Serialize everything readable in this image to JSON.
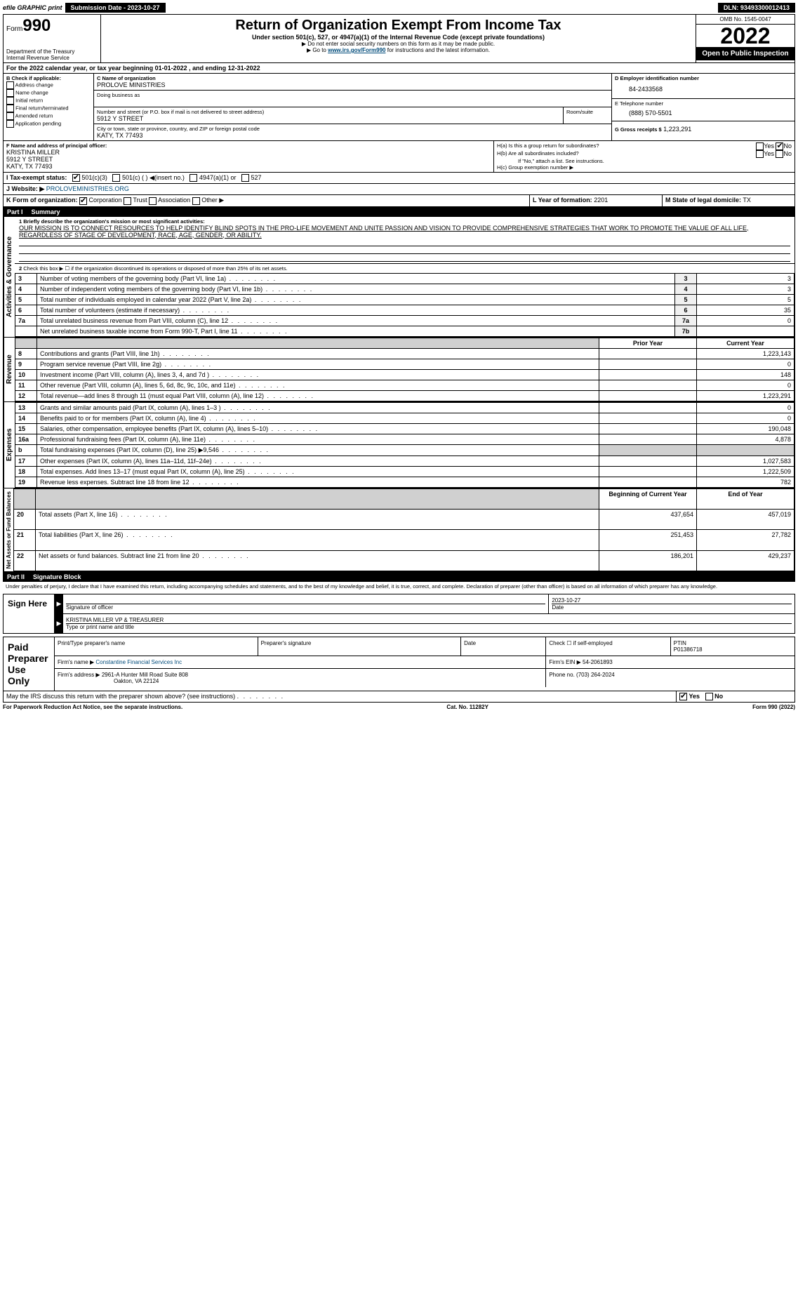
{
  "topbar": {
    "efile": "efile GRAPHIC print",
    "submission": "Submission Date - 2023-10-27",
    "dln": "DLN: 93493300012413"
  },
  "header": {
    "form_prefix": "Form",
    "form_number": "990",
    "dept": "Department of the Treasury",
    "irs": "Internal Revenue Service",
    "title": "Return of Organization Exempt From Income Tax",
    "subtitle": "Under section 501(c), 527, or 4947(a)(1) of the Internal Revenue Code (except private foundations)",
    "sub2": "▶ Do not enter social security numbers on this form as it may be made public.",
    "sub3_pre": "▶ Go to ",
    "sub3_link": "www.irs.gov/Form990",
    "sub3_post": " for instructions and the latest information.",
    "omb": "OMB No. 1545-0047",
    "year": "2022",
    "open": "Open to Public Inspection"
  },
  "line_a": "For the 2022 calendar year, or tax year beginning 01-01-2022    , and ending 12-31-2022",
  "box_b": {
    "title": "B Check if applicable:",
    "items": [
      "Address change",
      "Name change",
      "Initial return",
      "Final return/terminated",
      "Amended return",
      "Application pending"
    ]
  },
  "box_c": {
    "label_name": "C Name of organization",
    "name": "PROLOVE MINISTRIES",
    "dba_label": "Doing business as",
    "addr_label": "Number and street (or P.O. box if mail is not delivered to street address)",
    "room_label": "Room/suite",
    "addr": "5912 Y STREET",
    "city_label": "City or town, state or province, country, and ZIP or foreign postal code",
    "city": "KATY, TX  77493"
  },
  "box_d": {
    "label": "D Employer identification number",
    "value": "84-2433568"
  },
  "box_e": {
    "label": "E Telephone number",
    "value": "(888) 570-5501"
  },
  "box_g": {
    "label": "G Gross receipts $",
    "value": "1,223,291"
  },
  "box_f": {
    "label": "F  Name and address of principal officer:",
    "name": "KRISTINA MILLER",
    "addr1": "5912 Y STREET",
    "addr2": "KATY, TX  77493"
  },
  "box_h": {
    "ha_label": "H(a)  Is this a group return for subordinates?",
    "hb_label": "H(b)  Are all subordinates included?",
    "hb_note": "If \"No,\" attach a list. See instructions.",
    "hc_label": "H(c)  Group exemption number ▶",
    "yes": "Yes",
    "no": "No"
  },
  "box_i": {
    "label": "I  Tax-exempt status:",
    "opts": [
      "501(c)(3)",
      "501(c) (  ) ◀(insert no.)",
      "4947(a)(1) or",
      "527"
    ]
  },
  "box_j": {
    "label": "J  Website: ▶",
    "value": "PROLOVEMINISTRIES.ORG"
  },
  "box_k": {
    "label": "K Form of organization:",
    "opts": [
      "Corporation",
      "Trust",
      "Association",
      "Other ▶"
    ]
  },
  "box_l": {
    "label": "L Year of formation:",
    "value": "2201"
  },
  "box_m": {
    "label": "M State of legal domicile:",
    "value": "TX"
  },
  "part1": {
    "title": "Part I",
    "name": "Summary",
    "mission_label": "1 Briefly describe the organization's mission or most significant activities:",
    "mission": "OUR MISSION IS TO CONNECT RESOURCES TO HELP IDENTIFY BLIND SPOTS IN THE PRO-LIFE MOVEMENT AND UNITE PASSION AND VISION TO PROVIDE COMPREHENSIVE STRATEGIES THAT WORK TO PROMOTE THE VALUE OF ALL LIFE, REGARDLESS OF STAGE OF DEVELOPMENT, RACE, AGE, GENDER, OR ABILITY.",
    "line2": "Check this box ▶ ☐  if the organization discontinued its operations or disposed of more than 25% of its net assets.",
    "sections": {
      "governance": "Activities & Governance",
      "revenue": "Revenue",
      "expenses": "Expenses",
      "netassets": "Net Assets or Fund Balances"
    },
    "col_prior": "Prior Year",
    "col_current": "Current Year",
    "col_begin": "Beginning of Current Year",
    "col_end": "End of Year",
    "governance_rows": [
      {
        "n": "3",
        "text": "Number of voting members of the governing body (Part VI, line 1a)",
        "box": "3",
        "val": "3"
      },
      {
        "n": "4",
        "text": "Number of independent voting members of the governing body (Part VI, line 1b)",
        "box": "4",
        "val": "3"
      },
      {
        "n": "5",
        "text": "Total number of individuals employed in calendar year 2022 (Part V, line 2a)",
        "box": "5",
        "val": "5"
      },
      {
        "n": "6",
        "text": "Total number of volunteers (estimate if necessary)",
        "box": "6",
        "val": "35"
      },
      {
        "n": "7a",
        "text": "Total unrelated business revenue from Part VIII, column (C), line 12",
        "box": "7a",
        "val": "0"
      },
      {
        "n": "",
        "text": "Net unrelated business taxable income from Form 990-T, Part I, line 11",
        "box": "7b",
        "val": ""
      }
    ],
    "revenue_rows": [
      {
        "n": "8",
        "text": "Contributions and grants (Part VIII, line 1h)",
        "prior": "",
        "curr": "1,223,143"
      },
      {
        "n": "9",
        "text": "Program service revenue (Part VIII, line 2g)",
        "prior": "",
        "curr": "0"
      },
      {
        "n": "10",
        "text": "Investment income (Part VIII, column (A), lines 3, 4, and 7d )",
        "prior": "",
        "curr": "148"
      },
      {
        "n": "11",
        "text": "Other revenue (Part VIII, column (A), lines 5, 6d, 8c, 9c, 10c, and 11e)",
        "prior": "",
        "curr": "0"
      },
      {
        "n": "12",
        "text": "Total revenue—add lines 8 through 11 (must equal Part VIII, column (A), line 12)",
        "prior": "",
        "curr": "1,223,291"
      }
    ],
    "expense_rows": [
      {
        "n": "13",
        "text": "Grants and similar amounts paid (Part IX, column (A), lines 1–3 )",
        "prior": "",
        "curr": "0"
      },
      {
        "n": "14",
        "text": "Benefits paid to or for members (Part IX, column (A), line 4)",
        "prior": "",
        "curr": "0"
      },
      {
        "n": "15",
        "text": "Salaries, other compensation, employee benefits (Part IX, column (A), lines 5–10)",
        "prior": "",
        "curr": "190,048"
      },
      {
        "n": "16a",
        "text": "Professional fundraising fees (Part IX, column (A), line 11e)",
        "prior": "",
        "curr": "4,878"
      },
      {
        "n": "b",
        "text": "Total fundraising expenses (Part IX, column (D), line 25) ▶9,546",
        "prior": "grey",
        "curr": "grey"
      },
      {
        "n": "17",
        "text": "Other expenses (Part IX, column (A), lines 11a–11d, 11f–24e)",
        "prior": "",
        "curr": "1,027,583"
      },
      {
        "n": "18",
        "text": "Total expenses. Add lines 13–17 (must equal Part IX, column (A), line 25)",
        "prior": "",
        "curr": "1,222,509"
      },
      {
        "n": "19",
        "text": "Revenue less expenses. Subtract line 18 from line 12",
        "prior": "",
        "curr": "782"
      }
    ],
    "netasset_rows": [
      {
        "n": "20",
        "text": "Total assets (Part X, line 16)",
        "prior": "437,654",
        "curr": "457,019"
      },
      {
        "n": "21",
        "text": "Total liabilities (Part X, line 26)",
        "prior": "251,453",
        "curr": "27,782"
      },
      {
        "n": "22",
        "text": "Net assets or fund balances. Subtract line 21 from line 20",
        "prior": "186,201",
        "curr": "429,237"
      }
    ]
  },
  "part2": {
    "title": "Part II",
    "name": "Signature Block",
    "perjury": "Under penalties of perjury, I declare that I have examined this return, including accompanying schedules and statements, and to the best of my knowledge and belief, it is true, correct, and complete. Declaration of preparer (other than officer) is based on all information of which preparer has any knowledge."
  },
  "sign": {
    "here": "Sign Here",
    "sig_label": "Signature of officer",
    "date_label": "Date",
    "date_val": "2023-10-27",
    "name_val": "KRISTINA MILLER  VP & TREASURER",
    "name_label": "Type or print name and title"
  },
  "paid": {
    "title": "Paid Preparer Use Only",
    "print_label": "Print/Type preparer's name",
    "sig_label": "Preparer's signature",
    "date_label": "Date",
    "check_label": "Check ☐ if self-employed",
    "ptin_label": "PTIN",
    "ptin_val": "P01386718",
    "firm_name_label": "Firm's name    ▶",
    "firm_name": "Constantine Financial Services Inc",
    "firm_ein_label": "Firm's EIN ▶",
    "firm_ein": "54-2061893",
    "firm_addr_label": "Firm's address ▶",
    "firm_addr1": "2961-A Hunter Mill Road Suite 808",
    "firm_addr2": "Oakton, VA  22124",
    "phone_label": "Phone no.",
    "phone": "(703) 264-2024"
  },
  "discuss": {
    "text": "May the IRS discuss this return with the preparer shown above? (see instructions)",
    "yes": "Yes",
    "no": "No"
  },
  "footer": {
    "left": "For Paperwork Reduction Act Notice, see the separate instructions.",
    "mid": "Cat. No. 11282Y",
    "right": "Form 990 (2022)"
  }
}
